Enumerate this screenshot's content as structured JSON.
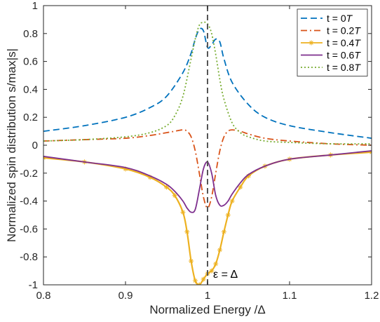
{
  "chart_data": {
    "type": "line",
    "xlabel": "Normalized Energy   /Δ",
    "ylabel": "Normalized spin distribution s/max|s|",
    "xlim": [
      0.8,
      1.2
    ],
    "ylim": [
      -1,
      1
    ],
    "xticks": [
      "0.8",
      "0.9",
      "1",
      "1.1",
      "1.2"
    ],
    "yticks": [
      "-1",
      "-0.8",
      "-0.6",
      "-0.4",
      "-0.2",
      "0",
      "0.2",
      "0.4",
      "0.6",
      "0.8",
      "1"
    ],
    "grid": false,
    "legend_position": "top-right",
    "annotation": {
      "text": "ε = Δ",
      "x": 1.0,
      "style": "dashed vertical line"
    },
    "series": [
      {
        "name": "t = 0T",
        "label_prefix": "t = 0",
        "label_unit": "T",
        "color": "#0072BD",
        "style": "dashed",
        "marker": "none",
        "x": [
          0.8,
          0.85,
          0.9,
          0.93,
          0.95,
          0.97,
          0.98,
          0.985,
          0.99,
          0.995,
          1.0,
          1.005,
          1.01,
          1.015,
          1.02,
          1.03,
          1.05,
          1.07,
          1.1,
          1.15,
          1.2
        ],
        "y": [
          0.1,
          0.14,
          0.2,
          0.27,
          0.35,
          0.52,
          0.66,
          0.76,
          0.83,
          0.82,
          0.7,
          0.72,
          0.76,
          0.74,
          0.62,
          0.45,
          0.29,
          0.2,
          0.14,
          0.09,
          0.05
        ]
      },
      {
        "name": "t = 0.2T",
        "label_prefix": "t = 0.2",
        "label_unit": "T",
        "color": "#D95319",
        "style": "dashdot",
        "marker": "none",
        "x": [
          0.8,
          0.85,
          0.9,
          0.93,
          0.95,
          0.96,
          0.97,
          0.975,
          0.98,
          0.985,
          0.99,
          0.995,
          1.0,
          1.005,
          1.01,
          1.015,
          1.02,
          1.025,
          1.03,
          1.04,
          1.05,
          1.07,
          1.1,
          1.15,
          1.2
        ],
        "y": [
          0.03,
          0.04,
          0.05,
          0.07,
          0.09,
          0.1,
          0.11,
          0.1,
          0.06,
          -0.04,
          -0.2,
          -0.37,
          -0.45,
          -0.37,
          -0.2,
          -0.04,
          0.06,
          0.1,
          0.11,
          0.1,
          0.08,
          0.05,
          0.03,
          0.01,
          0.0
        ]
      },
      {
        "name": "t = 0.4T",
        "label_prefix": "t = 0.4",
        "label_unit": "T",
        "color": "#EDB120",
        "style": "solid",
        "marker": "star",
        "x": [
          0.8,
          0.85,
          0.9,
          0.93,
          0.95,
          0.96,
          0.97,
          0.975,
          0.98,
          0.985,
          0.99,
          0.995,
          1.0,
          1.005,
          1.01,
          1.015,
          1.02,
          1.025,
          1.03,
          1.04,
          1.05,
          1.07,
          1.1,
          1.15,
          1.2
        ],
        "y": [
          -0.09,
          -0.12,
          -0.17,
          -0.23,
          -0.3,
          -0.36,
          -0.48,
          -0.62,
          -0.83,
          -0.97,
          -1.0,
          -0.96,
          -0.92,
          -0.9,
          -0.85,
          -0.75,
          -0.62,
          -0.5,
          -0.4,
          -0.3,
          -0.22,
          -0.15,
          -0.1,
          -0.07,
          -0.05
        ]
      },
      {
        "name": "t = 0.6T",
        "label_prefix": "t = 0.6",
        "label_unit": "T",
        "color": "#7E2F8E",
        "style": "solid",
        "marker": "none",
        "x": [
          0.8,
          0.85,
          0.9,
          0.93,
          0.95,
          0.96,
          0.97,
          0.975,
          0.98,
          0.985,
          0.99,
          0.995,
          1.0,
          1.005,
          1.01,
          1.015,
          1.02,
          1.025,
          1.03,
          1.04,
          1.05,
          1.07,
          1.1,
          1.15,
          1.2
        ],
        "y": [
          -0.08,
          -0.12,
          -0.16,
          -0.22,
          -0.28,
          -0.33,
          -0.4,
          -0.45,
          -0.48,
          -0.46,
          -0.32,
          -0.17,
          -0.12,
          -0.2,
          -0.36,
          -0.43,
          -0.43,
          -0.4,
          -0.35,
          -0.27,
          -0.21,
          -0.15,
          -0.1,
          -0.07,
          -0.04
        ]
      },
      {
        "name": "t = 0.8T",
        "label_prefix": "t = 0.8",
        "label_unit": "T",
        "color": "#77AC30",
        "style": "dotted",
        "marker": "none",
        "x": [
          0.8,
          0.85,
          0.9,
          0.93,
          0.95,
          0.96,
          0.97,
          0.98,
          0.985,
          0.99,
          0.995,
          1.0,
          1.005,
          1.01,
          1.015,
          1.02,
          1.03,
          1.04,
          1.05,
          1.07,
          1.1,
          1.15,
          1.2
        ],
        "y": [
          0.03,
          0.04,
          0.06,
          0.09,
          0.14,
          0.21,
          0.35,
          0.62,
          0.76,
          0.86,
          0.88,
          0.87,
          0.8,
          0.65,
          0.47,
          0.33,
          0.16,
          0.09,
          0.06,
          0.03,
          0.02,
          0.01,
          0.01
        ]
      }
    ]
  }
}
